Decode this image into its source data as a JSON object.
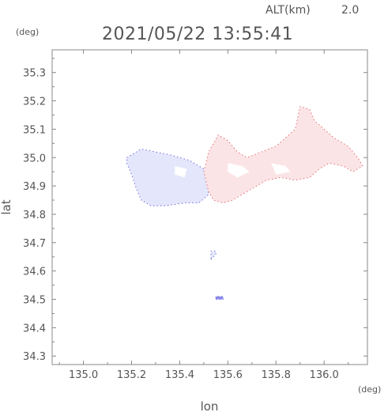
{
  "chart_data": {
    "type": "heatmap",
    "header": {
      "alt_label": "ALT(km)",
      "alt_value": "2.0",
      "timestamp": "2021/05/22 13:55:41"
    },
    "xlabel": "lon",
    "ylabel": "lat",
    "x_unit": "(deg)",
    "y_unit": "(deg)",
    "xlim": [
      134.87,
      136.18
    ],
    "ylim": [
      34.27,
      35.38
    ],
    "x_ticks": [
      {
        "value": 135.0,
        "label": "135.0"
      },
      {
        "value": 135.2,
        "label": "135.2"
      },
      {
        "value": 135.4,
        "label": "135.4"
      },
      {
        "value": 135.6,
        "label": "135.6"
      },
      {
        "value": 135.8,
        "label": "135.8"
      },
      {
        "value": 136.0,
        "label": "136.0"
      }
    ],
    "y_ticks": [
      {
        "value": 34.3,
        "label": "34.3"
      },
      {
        "value": 34.4,
        "label": "34.4"
      },
      {
        "value": 34.5,
        "label": "34.5"
      },
      {
        "value": 34.6,
        "label": "34.6"
      },
      {
        "value": 34.7,
        "label": "34.7"
      },
      {
        "value": 34.8,
        "label": "34.8"
      },
      {
        "value": 34.9,
        "label": "34.9"
      },
      {
        "value": 35.0,
        "label": "35.0"
      },
      {
        "value": 35.1,
        "label": "35.1"
      },
      {
        "value": 35.2,
        "label": "35.2"
      },
      {
        "value": 35.3,
        "label": "35.3"
      }
    ],
    "regions": [
      {
        "kind": "negative",
        "color": "#e4e6fb",
        "edge_color": "#5050d8",
        "outline": [
          [
            135.18,
            35.0
          ],
          [
            135.24,
            35.03
          ],
          [
            135.3,
            35.02
          ],
          [
            135.36,
            35.01
          ],
          [
            135.44,
            34.99
          ],
          [
            135.5,
            34.96
          ],
          [
            135.52,
            34.92
          ],
          [
            135.52,
            34.87
          ],
          [
            135.48,
            34.84
          ],
          [
            135.42,
            34.84
          ],
          [
            135.34,
            34.83
          ],
          [
            135.28,
            34.83
          ],
          [
            135.24,
            34.85
          ],
          [
            135.22,
            34.89
          ],
          [
            135.2,
            34.94
          ],
          [
            135.18,
            34.98
          ]
        ]
      },
      {
        "kind": "positive",
        "color": "#fbe4e6",
        "edge_color": "#e05050",
        "outline": [
          [
            135.5,
            34.95
          ],
          [
            135.52,
            35.02
          ],
          [
            135.56,
            35.08
          ],
          [
            135.6,
            35.06
          ],
          [
            135.64,
            35.02
          ],
          [
            135.68,
            35.0
          ],
          [
            135.74,
            35.02
          ],
          [
            135.8,
            35.04
          ],
          [
            135.84,
            35.07
          ],
          [
            135.88,
            35.1
          ],
          [
            135.9,
            35.18
          ],
          [
            135.94,
            35.17
          ],
          [
            135.96,
            35.13
          ],
          [
            136.0,
            35.1
          ],
          [
            136.04,
            35.07
          ],
          [
            136.1,
            35.04
          ],
          [
            136.14,
            35.0
          ],
          [
            136.16,
            34.97
          ],
          [
            136.12,
            34.95
          ],
          [
            136.08,
            34.97
          ],
          [
            136.02,
            34.98
          ],
          [
            135.98,
            34.96
          ],
          [
            135.94,
            34.93
          ],
          [
            135.88,
            34.92
          ],
          [
            135.82,
            34.93
          ],
          [
            135.76,
            34.92
          ],
          [
            135.72,
            34.9
          ],
          [
            135.68,
            34.88
          ],
          [
            135.62,
            34.85
          ],
          [
            135.58,
            34.84
          ],
          [
            135.54,
            34.85
          ],
          [
            135.52,
            34.88
          ]
        ]
      },
      {
        "kind": "negative",
        "color": "#e4e6fb",
        "edge_color": "#5050d8",
        "outline": [
          [
            135.53,
            34.64
          ],
          [
            135.55,
            34.66
          ],
          [
            135.55,
            34.67
          ],
          [
            135.53,
            34.67
          ]
        ]
      },
      {
        "kind": "negative",
        "color": "#8c8cee",
        "edge_color": "#5050d8",
        "outline": [
          [
            135.55,
            34.5
          ],
          [
            135.58,
            34.5
          ],
          [
            135.58,
            34.51
          ],
          [
            135.55,
            34.51
          ]
        ]
      }
    ],
    "gaps": [
      {
        "color": "#ffffff",
        "outline": [
          [
            135.6,
            34.98
          ],
          [
            135.66,
            34.97
          ],
          [
            135.69,
            34.95
          ],
          [
            135.64,
            34.93
          ],
          [
            135.6,
            34.95
          ]
        ]
      },
      {
        "color": "#ffffff",
        "outline": [
          [
            135.78,
            34.98
          ],
          [
            135.84,
            34.97
          ],
          [
            135.86,
            34.95
          ],
          [
            135.8,
            34.94
          ]
        ]
      },
      {
        "color": "#ffffff",
        "outline": [
          [
            135.38,
            34.97
          ],
          [
            135.43,
            34.96
          ],
          [
            135.42,
            34.93
          ],
          [
            135.38,
            34.94
          ]
        ]
      }
    ]
  }
}
